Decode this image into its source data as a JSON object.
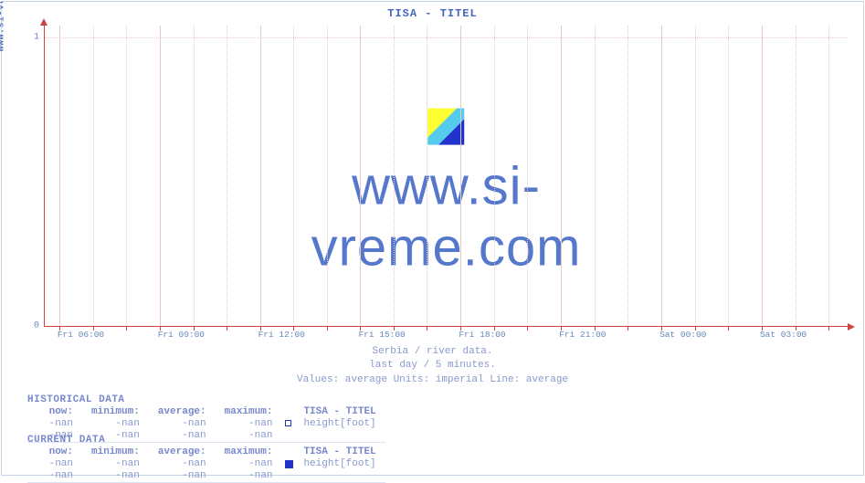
{
  "site_label": "www.si-vreme.com",
  "chart": {
    "type": "line",
    "title": "TISA -  TITEL",
    "watermark_text": "www.si-vreme.com",
    "background_color": "#ffffff",
    "grid_color": "#e6c8c8",
    "axis_color": "#cc4444",
    "text_color": "#6688bb",
    "title_color": "#4466bb",
    "title_fontsize": 12,
    "label_fontsize": 10,
    "watermark_fontsize": 58,
    "ylim": [
      0,
      1
    ],
    "yticks": [
      0,
      1
    ],
    "xticks": [
      {
        "pos": 0.018,
        "label": "Fri 06:00",
        "major": true
      },
      {
        "pos": 0.06,
        "label": "",
        "major": false
      },
      {
        "pos": 0.101,
        "label": "",
        "major": false
      },
      {
        "pos": 0.143,
        "label": "Fri 09:00",
        "major": true
      },
      {
        "pos": 0.185,
        "label": "",
        "major": false
      },
      {
        "pos": 0.226,
        "label": "",
        "major": false
      },
      {
        "pos": 0.268,
        "label": "Fri 12:00",
        "major": true
      },
      {
        "pos": 0.31,
        "label": "",
        "major": false
      },
      {
        "pos": 0.351,
        "label": "",
        "major": false
      },
      {
        "pos": 0.393,
        "label": "Fri 15:00",
        "major": true
      },
      {
        "pos": 0.435,
        "label": "",
        "major": false
      },
      {
        "pos": 0.476,
        "label": "",
        "major": false
      },
      {
        "pos": 0.518,
        "label": "Fri 18:00",
        "major": true
      },
      {
        "pos": 0.56,
        "label": "",
        "major": false
      },
      {
        "pos": 0.601,
        "label": "",
        "major": false
      },
      {
        "pos": 0.643,
        "label": "Fri 21:00",
        "major": true
      },
      {
        "pos": 0.685,
        "label": "",
        "major": false
      },
      {
        "pos": 0.726,
        "label": "",
        "major": false
      },
      {
        "pos": 0.768,
        "label": "Sat 00:00",
        "major": true
      },
      {
        "pos": 0.81,
        "label": "",
        "major": false
      },
      {
        "pos": 0.851,
        "label": "",
        "major": false
      },
      {
        "pos": 0.893,
        "label": "Sat 03:00",
        "major": true
      },
      {
        "pos": 0.935,
        "label": "",
        "major": false
      },
      {
        "pos": 0.976,
        "label": "",
        "major": false
      }
    ],
    "caption_lines": [
      "Serbia / river data.",
      "last day / 5 minutes.",
      "Values: average  Units: imperial  Line: average"
    ]
  },
  "historical": {
    "heading": "HISTORICAL DATA",
    "columns": [
      "now:",
      "minimum:",
      "average:",
      "maximum:"
    ],
    "series_label": "TISA -  TITEL",
    "series_unit": "height[foot]",
    "series_swatch_style": "outline",
    "series_color": "#2233cc",
    "rows": [
      [
        "-nan",
        "-nan",
        "-nan",
        "-nan"
      ],
      [
        "-nan",
        "-nan",
        "-nan",
        "-nan"
      ]
    ]
  },
  "current": {
    "heading": "CURRENT DATA",
    "columns": [
      "now:",
      "minimum:",
      "average:",
      "maximum:"
    ],
    "series_label": "TISA -  TITEL",
    "series_unit": "height[foot]",
    "series_swatch_style": "filled",
    "series_color": "#2233cc",
    "rows": [
      [
        "-nan",
        "-nan",
        "-nan",
        "-nan"
      ],
      [
        "-nan",
        "-nan",
        "-nan",
        "-nan"
      ]
    ]
  }
}
